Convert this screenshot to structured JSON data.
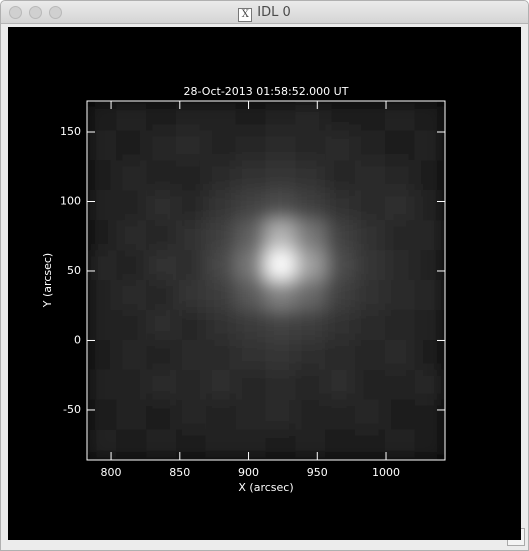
{
  "window": {
    "title": "IDL 0"
  },
  "chart_data": {
    "type": "image",
    "title": "28-Oct-2013 01:58:52.000 UT",
    "x_label": "X (arcsec)",
    "y_label": "Y (arcsec)",
    "xlim": [
      782.5,
      1042.9
    ],
    "ylim": [
      -86,
      172.3
    ],
    "xticks": [
      800,
      850,
      900,
      950,
      1000
    ],
    "yticks": [
      -50,
      0,
      50,
      100,
      150
    ],
    "colormap": "gray",
    "values": [
      [
        30,
        34,
        28,
        32,
        36,
        30,
        34,
        38,
        30,
        28,
        34,
        30
      ],
      [
        34,
        28,
        38,
        42,
        36,
        40,
        44,
        38,
        42,
        34,
        30,
        36
      ],
      [
        28,
        40,
        36,
        32,
        44,
        50,
        54,
        48,
        40,
        44,
        38,
        30
      ],
      [
        36,
        34,
        46,
        40,
        52,
        66,
        78,
        64,
        50,
        42,
        46,
        34
      ],
      [
        30,
        42,
        38,
        50,
        64,
        96,
        180,
        120,
        66,
        48,
        40,
        38
      ],
      [
        38,
        36,
        48,
        46,
        72,
        120,
        255,
        160,
        78,
        52,
        44,
        32
      ],
      [
        32,
        44,
        40,
        52,
        62,
        90,
        130,
        104,
        64,
        50,
        42,
        40
      ],
      [
        36,
        34,
        46,
        40,
        50,
        58,
        66,
        60,
        48,
        44,
        38,
        34
      ],
      [
        30,
        40,
        36,
        44,
        42,
        48,
        52,
        46,
        42,
        40,
        44,
        30
      ],
      [
        34,
        32,
        42,
        38,
        46,
        40,
        44,
        40,
        46,
        36,
        32,
        38
      ],
      [
        28,
        36,
        30,
        40,
        34,
        38,
        42,
        36,
        34,
        40,
        30,
        28
      ],
      [
        32,
        28,
        34,
        30,
        36,
        32,
        30,
        34,
        30,
        28,
        34,
        30
      ]
    ]
  }
}
